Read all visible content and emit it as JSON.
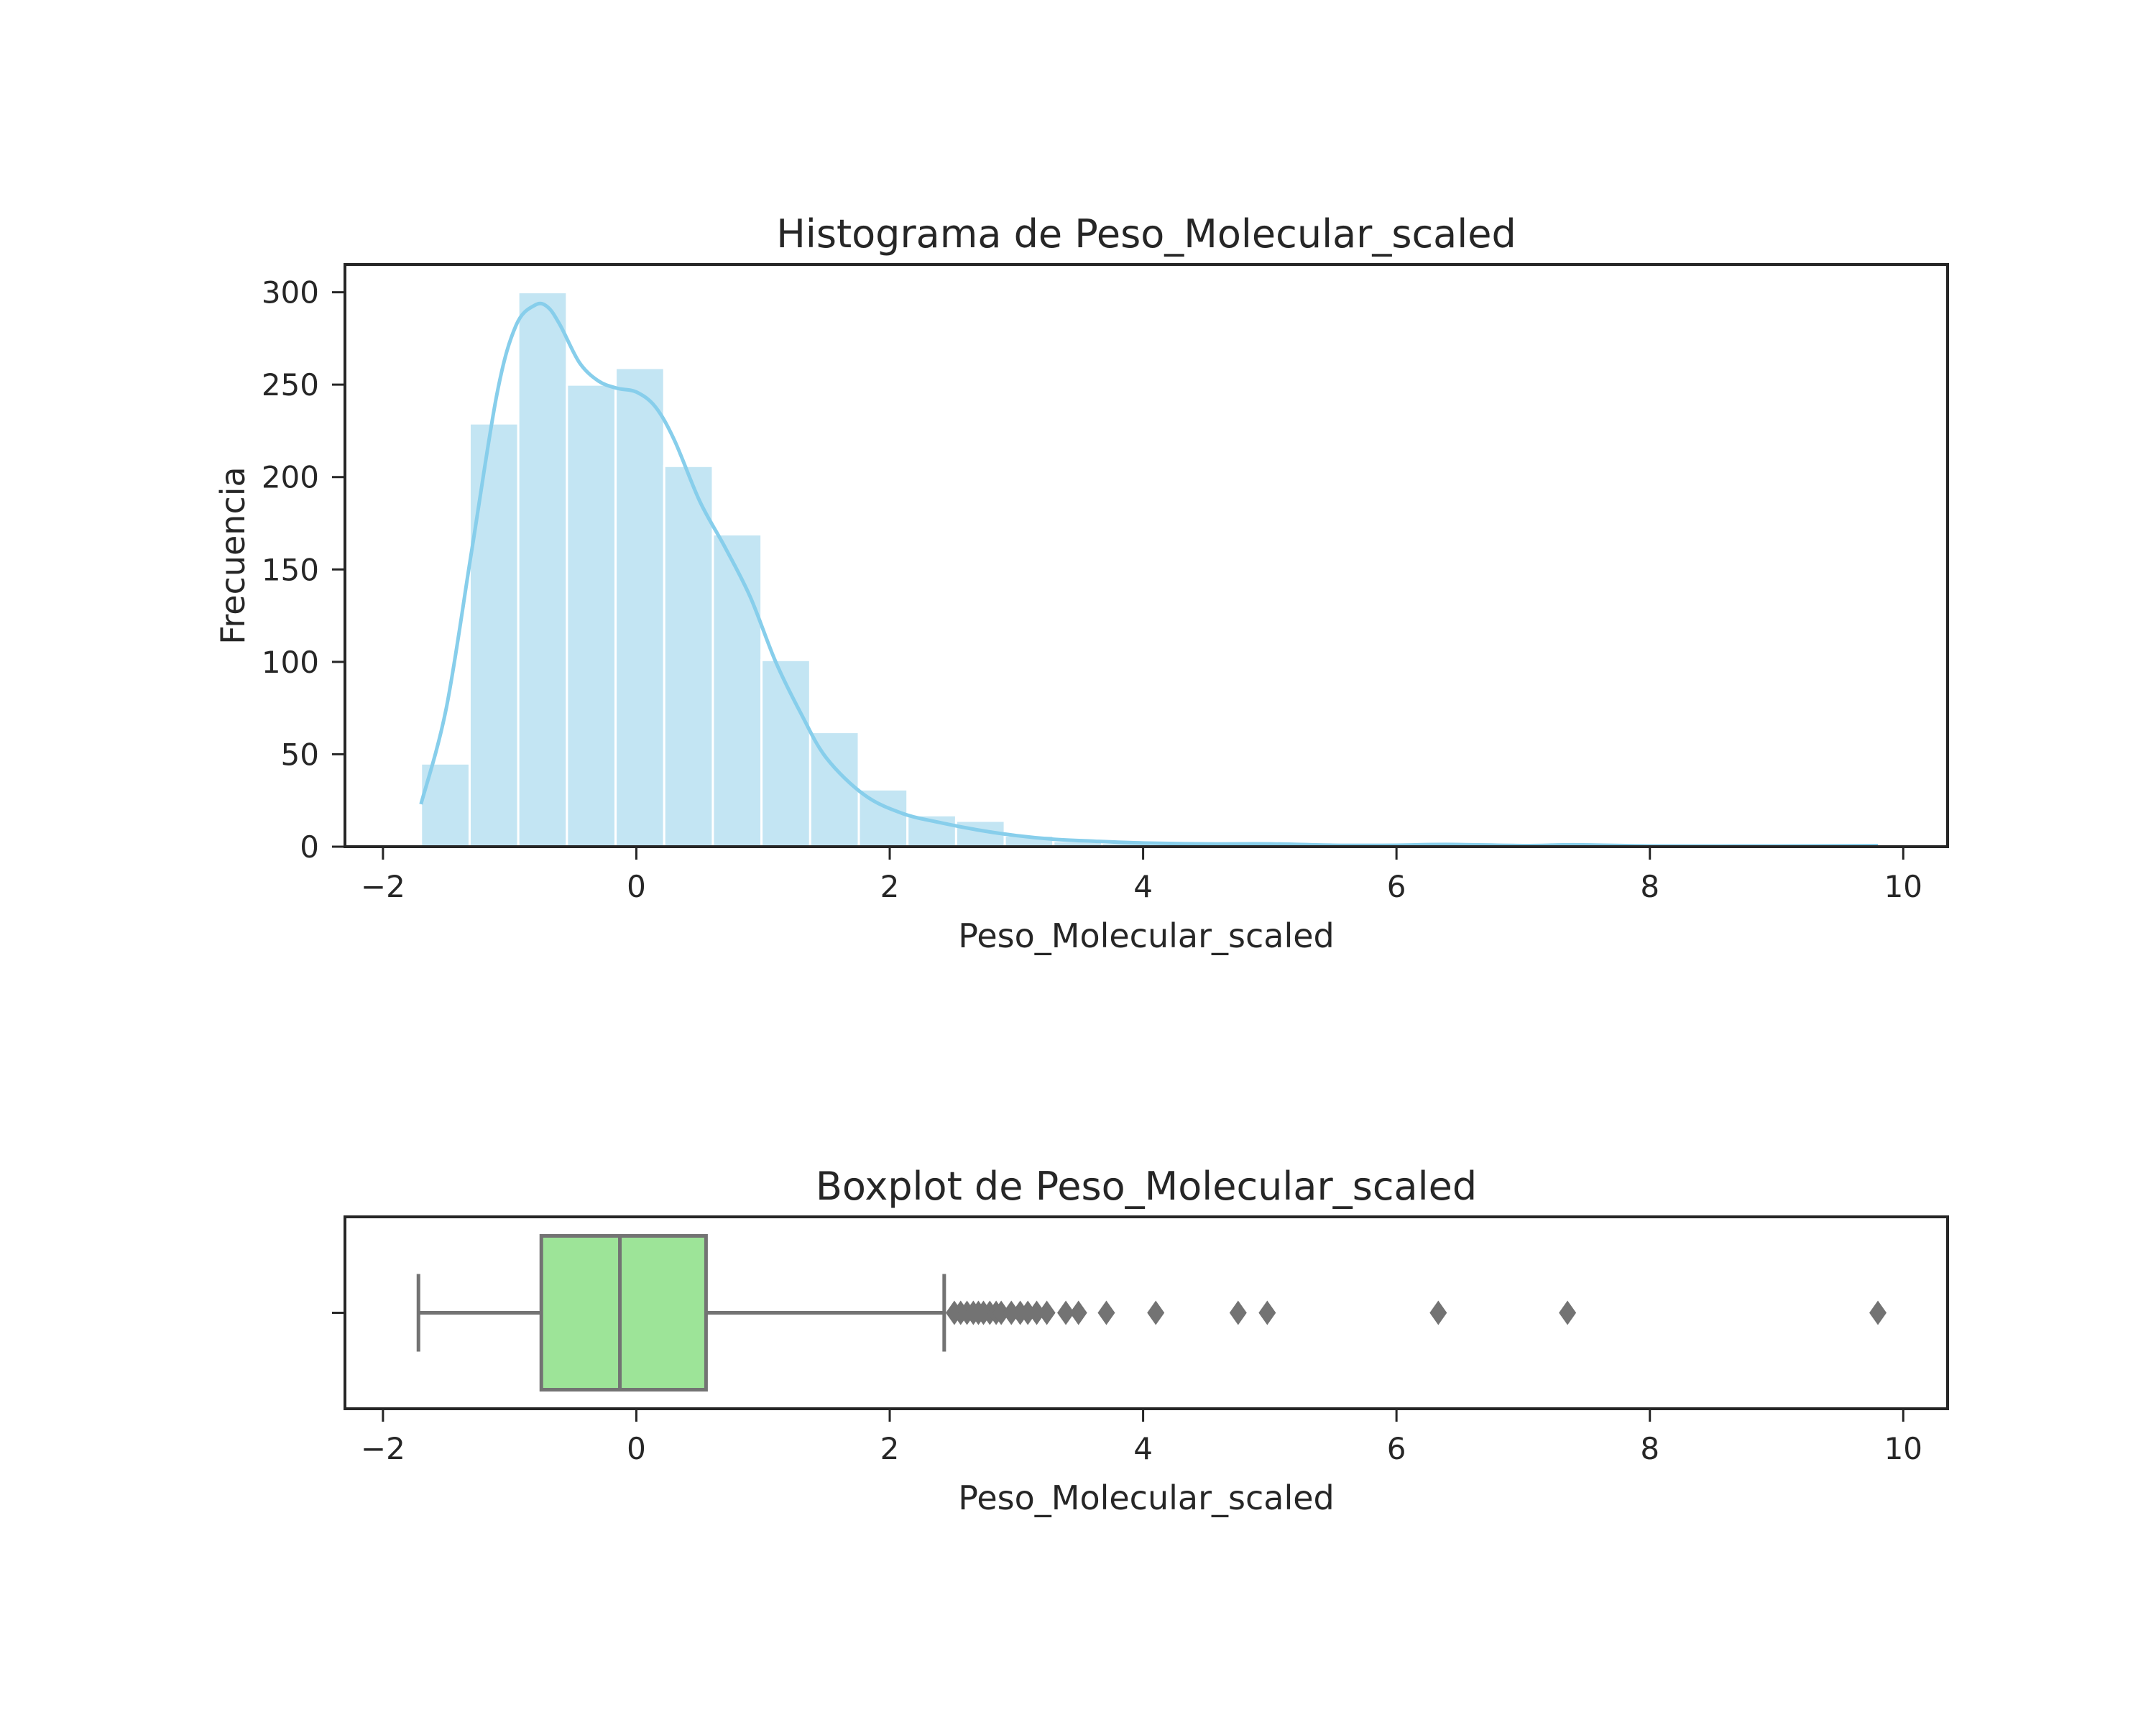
{
  "colors": {
    "hist_fill": "#c3e5f3",
    "kde_line": "#87ceeb",
    "box_fill": "#9de498",
    "box_line": "#737373",
    "flier": "#737373",
    "axis": "#262626"
  },
  "chart_data": [
    {
      "type": "bar",
      "subtype": "histogram-with-kde",
      "title": "Histograma de Peso_Molecular_scaled",
      "xlabel": "Peso_Molecular_scaled",
      "ylabel": "Frecuencia",
      "xlim": [
        -2.3,
        10.35
      ],
      "ylim": [
        0,
        315
      ],
      "xticks": [
        -2,
        0,
        2,
        4,
        6,
        8,
        10
      ],
      "xtick_labels": [
        "−2",
        "0",
        "2",
        "4",
        "6",
        "8",
        "10"
      ],
      "yticks": [
        0,
        50,
        100,
        150,
        200,
        250,
        300
      ],
      "ytick_labels": [
        "0",
        "50",
        "100",
        "150",
        "200",
        "250",
        "300"
      ],
      "bin_edges": [
        -1.7,
        -1.316,
        -0.932,
        -0.548,
        -0.164,
        0.22,
        0.604,
        0.988,
        1.372,
        1.756,
        2.14,
        2.524,
        2.908,
        3.292,
        3.676,
        4.06,
        4.444,
        4.828,
        5.212,
        5.596,
        5.98,
        6.364,
        6.748,
        7.132,
        7.516,
        7.9,
        8.284,
        8.668,
        9.052,
        9.436,
        9.82
      ],
      "counts": [
        45,
        229,
        300,
        250,
        259,
        206,
        169,
        101,
        62,
        31,
        17,
        14,
        6,
        3,
        2,
        1,
        0,
        1,
        0,
        0,
        0,
        1,
        0,
        0,
        1,
        0,
        0,
        0,
        0,
        1
      ],
      "kde": {
        "x": [
          -1.7,
          -1.5,
          -1.3,
          -1.1,
          -0.95,
          -0.8,
          -0.7,
          -0.6,
          -0.45,
          -0.3,
          -0.15,
          0.0,
          0.15,
          0.3,
          0.5,
          0.7,
          0.9,
          1.1,
          1.3,
          1.5,
          1.8,
          2.1,
          2.4,
          2.7,
          3.0,
          3.3,
          3.6,
          4.0,
          4.5,
          5.0,
          5.5,
          6.0,
          6.4,
          7.0,
          7.4,
          8.0,
          9.0,
          9.8
        ],
        "y": [
          23,
          75,
          160,
          245,
          282,
          293,
          292,
          282,
          262,
          252,
          248,
          246,
          238,
          220,
          187,
          162,
          135,
          100,
          72,
          48,
          28,
          18,
          13,
          9,
          6,
          4,
          3,
          2,
          1.5,
          1.5,
          0.8,
          0.8,
          1.2,
          0.6,
          1,
          0.4,
          0.4,
          0.6
        ]
      }
    },
    {
      "type": "boxplot",
      "title": "Boxplot de Peso_Molecular_scaled",
      "xlabel": "Peso_Molecular_scaled",
      "xlim": [
        -2.3,
        10.35
      ],
      "xticks": [
        -2,
        0,
        2,
        4,
        6,
        8,
        10
      ],
      "xtick_labels": [
        "−2",
        "0",
        "2",
        "4",
        "6",
        "8",
        "10"
      ],
      "whisker_low": -1.72,
      "q1": -0.75,
      "median": -0.13,
      "q3": 0.55,
      "whisker_high": 2.43,
      "outliers": [
        2.51,
        2.56,
        2.61,
        2.66,
        2.7,
        2.74,
        2.79,
        2.84,
        2.88,
        2.96,
        3.03,
        3.09,
        3.16,
        3.24,
        3.39,
        3.49,
        3.71,
        4.1,
        4.75,
        4.98,
        6.33,
        7.35,
        9.8
      ]
    }
  ]
}
